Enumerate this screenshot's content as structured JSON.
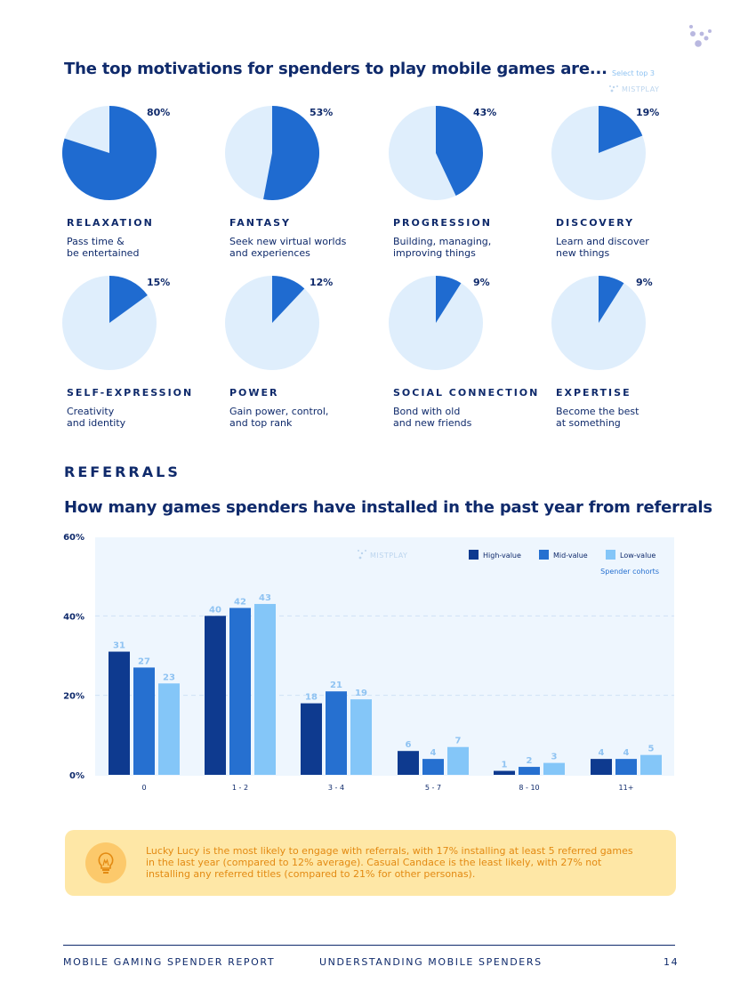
{
  "motivations": {
    "title": "The top motivations for spenders to play mobile games are...",
    "note": "Select top 3",
    "brand": "MISTPLAY",
    "colors": {
      "fill": "#1f6bd0",
      "empty": "#dfeefc"
    },
    "items": [
      {
        "label": "RELAXATION",
        "pct": 80,
        "pct_label": "80%",
        "desc": "Pass time &\nbe entertained"
      },
      {
        "label": "FANTASY",
        "pct": 53,
        "pct_label": "53%",
        "desc": "Seek new virtual worlds\nand experiences"
      },
      {
        "label": "PROGRESSION",
        "pct": 43,
        "pct_label": "43%",
        "desc": "Building, managing,\nimproving things"
      },
      {
        "label": "DISCOVERY",
        "pct": 19,
        "pct_label": "19%",
        "desc": "Learn and discover\nnew things"
      },
      {
        "label": "SELF-EXPRESSION",
        "pct": 15,
        "pct_label": "15%",
        "desc": "Creativity\nand identity"
      },
      {
        "label": "POWER",
        "pct": 12,
        "pct_label": "12%",
        "desc": "Gain power, control,\nand top rank"
      },
      {
        "label": "SOCIAL CONNECTION",
        "pct": 9,
        "pct_label": "9%",
        "desc": "Bond with old\nand new friends"
      },
      {
        "label": "EXPERTISE",
        "pct": 9,
        "pct_label": "9%",
        "desc": "Become the best\nat something"
      }
    ]
  },
  "referrals": {
    "section_title": "REFERRALS",
    "title": "How many games spenders have installed in the past year from referrals",
    "legend_caption": "Spender cohorts",
    "brand": "MISTPLAY"
  },
  "chart_data": {
    "type": "bar",
    "title": "How many games spenders have installed in the past year from referrals",
    "categories": [
      "0",
      "1 - 2",
      "3 - 4",
      "5 - 7",
      "8 - 10",
      "11+"
    ],
    "series": [
      {
        "name": "High-value",
        "values": [
          31,
          40,
          18,
          6,
          1,
          4
        ],
        "color": "#0e3a8f",
        "label_color": "#8fc3f2"
      },
      {
        "name": "Mid-value",
        "values": [
          27,
          42,
          21,
          4,
          2,
          4
        ],
        "color": "#2670d0",
        "label_color": "#8fc3f2"
      },
      {
        "name": "Low-value",
        "values": [
          23,
          43,
          19,
          7,
          3,
          5
        ],
        "color": "#84c6f8",
        "label_color": "#8fc3f2"
      }
    ],
    "ylim": [
      0,
      60
    ],
    "yticks": [
      0,
      20,
      40,
      60
    ],
    "ytick_labels": [
      "0%",
      "20%",
      "40%",
      "60%"
    ],
    "xlabel": "",
    "ylabel": "",
    "legend": "top-right",
    "grid": true
  },
  "callout": {
    "text": "Lucky Lucy is the most likely to engage with referrals, with 17% installing at least 5 referred games in the last year (compared to 12% average). Casual Candace is the least likely, with 27% not installing any referred titles (compared to 21% for other personas).",
    "icon": "lightbulb-icon"
  },
  "footer": {
    "left": "MOBILE GAMING SPENDER REPORT",
    "center": "UNDERSTANDING MOBILE SPENDERS",
    "page": "14"
  }
}
